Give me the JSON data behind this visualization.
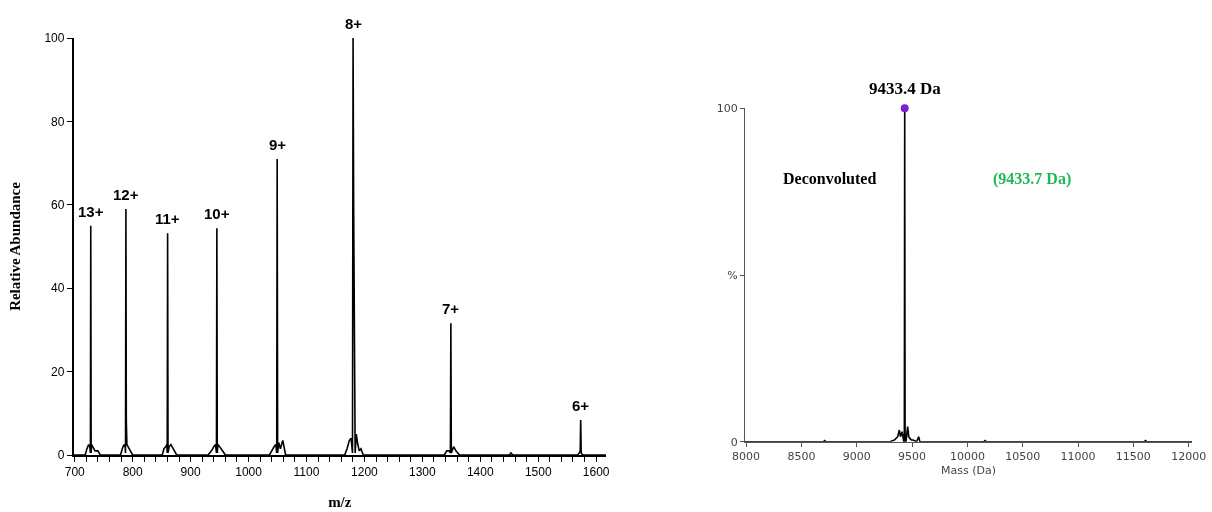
{
  "chart_data": [
    {
      "type": "line",
      "xlabel": "m/z",
      "ylabel": "Relative Abundance",
      "color": "#000000",
      "x": [
        698,
        718,
        721,
        724,
        726,
        727,
        727.6,
        728.3,
        729,
        731,
        735,
        740,
        744,
        779,
        782,
        785,
        787,
        787.6,
        788.3,
        789,
        790,
        792,
        796,
        800,
        851,
        854,
        857,
        859,
        859.6,
        860.3,
        861,
        863,
        866,
        872,
        876,
        930,
        936,
        940,
        943,
        944.6,
        945.3,
        946,
        947,
        950,
        955,
        960,
        1036,
        1040,
        1044,
        1047,
        1048.6,
        1049.4,
        1050.2,
        1052,
        1055,
        1059,
        1064,
        1166,
        1170,
        1174,
        1177,
        1179.4,
        1180.4,
        1181.4,
        1184,
        1186,
        1188,
        1191,
        1194,
        1198,
        1338,
        1342,
        1346,
        1348.4,
        1349.2,
        1350,
        1354,
        1358,
        1364,
        1450,
        1453,
        1456,
        1568,
        1571,
        1572.5,
        1573.3,
        1574.2,
        1577,
        1617
      ],
      "values": [
        0,
        0,
        1.5,
        2.5,
        2,
        0.5,
        55,
        0.5,
        2.5,
        2,
        1,
        1,
        0,
        0,
        1.5,
        2.5,
        2,
        0.5,
        59,
        8,
        2.5,
        2,
        1,
        0,
        0,
        1.5,
        2,
        2.5,
        0.5,
        53.2,
        0.5,
        2,
        2.5,
        1,
        0,
        0,
        1,
        2,
        2.5,
        0.5,
        54.4,
        0.5,
        2.5,
        2,
        1,
        0,
        0,
        1,
        2,
        2.5,
        0.5,
        71,
        0.5,
        3,
        1.5,
        3.5,
        0,
        0,
        1.5,
        3.5,
        4,
        0.5,
        100,
        60,
        0.5,
        5,
        3,
        1,
        1.5,
        0,
        0,
        1,
        1,
        0.5,
        31.6,
        0.5,
        2,
        1,
        0,
        0,
        0.5,
        0,
        0,
        0.5,
        1,
        8.4,
        0.5,
        0,
        0
      ],
      "xlim": [
        698,
        1617
      ],
      "xticks": [
        700,
        {
          "value": 720,
          "label": null
        },
        {
          "value": 740,
          "label": null
        },
        {
          "value": 760,
          "label": null
        },
        {
          "value": 780,
          "label": null
        },
        800,
        {
          "value": 820,
          "label": null
        },
        {
          "value": 840,
          "label": null
        },
        {
          "value": 860,
          "label": null
        },
        {
          "value": 880,
          "label": null
        },
        900,
        {
          "value": 920,
          "label": null
        },
        {
          "value": 940,
          "label": null
        },
        {
          "value": 960,
          "label": null
        },
        {
          "value": 980,
          "label": null
        },
        1000,
        {
          "value": 1020,
          "label": null
        },
        {
          "value": 1040,
          "label": null
        },
        {
          "value": 1060,
          "label": null
        },
        {
          "value": 1080,
          "label": null
        },
        1100,
        {
          "value": 1120,
          "label": null
        },
        {
          "value": 1140,
          "label": null
        },
        {
          "value": 1160,
          "label": null
        },
        {
          "value": 1180,
          "label": null
        },
        1200,
        {
          "value": 1220,
          "label": null
        },
        {
          "value": 1240,
          "label": null
        },
        {
          "value": 1260,
          "label": null
        },
        {
          "value": 1280,
          "label": null
        },
        1300,
        {
          "value": 1320,
          "label": null
        },
        {
          "value": 1340,
          "label": null
        },
        {
          "value": 1360,
          "label": null
        },
        {
          "value": 1380,
          "label": null
        },
        1400,
        {
          "value": 1420,
          "label": null
        },
        {
          "value": 1440,
          "label": null
        },
        {
          "value": 1460,
          "label": null
        },
        {
          "value": 1480,
          "label": null
        },
        1500,
        {
          "value": 1520,
          "label": null
        },
        {
          "value": 1540,
          "label": null
        },
        {
          "value": 1560,
          "label": null
        },
        {
          "value": 1580,
          "label": null
        },
        1600
      ],
      "ylim": [
        0,
        100
      ],
      "yticks": [
        0,
        20,
        40,
        60,
        80,
        100
      ],
      "annotations": [
        {
          "text": "13+",
          "x": 727.6,
          "y": 55
        },
        {
          "text": "12+",
          "x": 788.3,
          "y": 59
        },
        {
          "text": "11+",
          "x": 859.6,
          "y": 53.2
        },
        {
          "text": "10+",
          "x": 945.3,
          "y": 54.4
        },
        {
          "text": "9+",
          "x": 1049.4,
          "y": 71
        },
        {
          "text": "8+",
          "x": 1180.4,
          "y": 100
        },
        {
          "text": "7+",
          "x": 1349.2,
          "y": 31.6
        },
        {
          "text": "6+",
          "x": 1573.3,
          "y": 8.4
        }
      ]
    },
    {
      "type": "line",
      "xlabel": "Mass (Da)",
      "series": [
        {
          "type": "line",
          "color": "#000000",
          "x": [
            7990,
            8700,
            8710,
            8720,
            9300,
            9340,
            9370,
            9385,
            9395,
            9410,
            9425,
            9430,
            9433.4,
            9437,
            9445,
            9460,
            9470,
            9480,
            9495,
            9510,
            9540,
            9560,
            9570,
            10150,
            10160,
            10170,
            11600,
            11610,
            11620,
            12030
          ],
          "values": [
            0,
            0,
            0.3,
            0,
            0,
            0.5,
            1.5,
            3.5,
            1.5,
            3,
            0,
            0,
            100,
            0,
            0,
            4.5,
            1.5,
            1,
            0.5,
            0.5,
            0,
            1.5,
            0,
            0,
            0.3,
            0,
            0,
            0.3,
            0,
            0
          ]
        },
        {
          "type": "scatter",
          "marker": "circle",
          "color": "#7b1fd1",
          "x": [
            9433.4
          ],
          "values": [
            100
          ]
        }
      ],
      "xlim": [
        7990,
        12030
      ],
      "xticks": [
        8000,
        8500,
        9000,
        9500,
        10000,
        10500,
        11000,
        11500,
        12000
      ],
      "ylim": [
        0,
        100
      ],
      "yticks": [
        0,
        {
          "value": 50,
          "label": "%"
        },
        100
      ],
      "annotations": [
        {
          "text": "9433.4 Da",
          "x": 9433.4,
          "y": 100
        },
        "Deconvoluted",
        "(9433.7 Da)"
      ]
    }
  ]
}
